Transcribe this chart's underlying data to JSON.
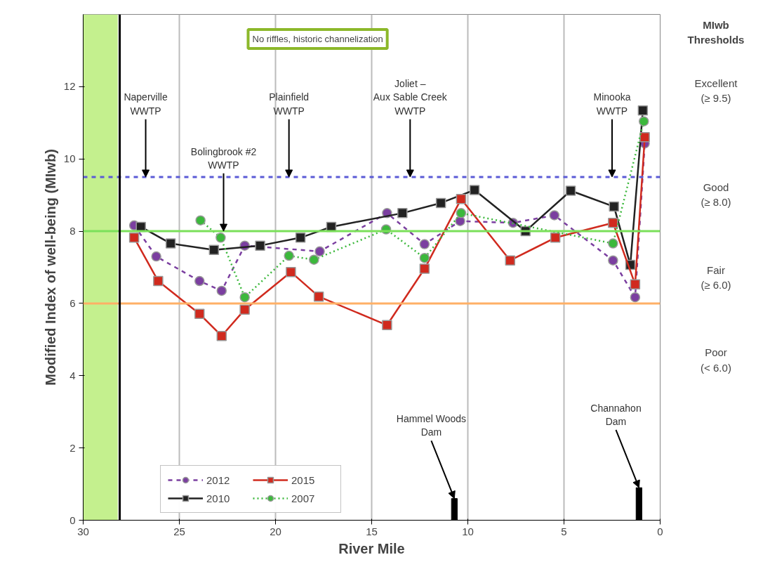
{
  "chart_data": {
    "type": "line",
    "xlabel": "River Mile",
    "ylabel": "Modified Index of well-being (MIwb)",
    "xlim": [
      30,
      0
    ],
    "ylim": [
      0,
      14
    ],
    "xticks": [
      30,
      25,
      20,
      15,
      10,
      5,
      0
    ],
    "yticks": [
      0,
      2,
      4,
      6,
      8,
      10,
      12
    ],
    "grid": "x",
    "legend": "bottom",
    "series": [
      {
        "name": "2012",
        "color": "#7b3fa0",
        "marker": "circle",
        "line_style": "dashed",
        "x": [
          27.35,
          26.2,
          23.95,
          22.8,
          21.6,
          17.7,
          14.2,
          12.25,
          10.4,
          7.65,
          5.5,
          2.45,
          1.3,
          0.8
        ],
        "values": [
          8.16,
          7.3,
          6.62,
          6.35,
          7.6,
          7.44,
          8.5,
          7.64,
          8.28,
          8.23,
          8.44,
          7.19,
          6.17,
          10.43
        ]
      },
      {
        "name": "2010",
        "color": "#222222",
        "marker": "square",
        "line_style": "solid",
        "x": [
          27.0,
          25.45,
          23.2,
          20.8,
          18.7,
          17.1,
          13.4,
          11.4,
          9.65,
          7.0,
          4.65,
          2.4,
          1.55,
          0.9
        ],
        "values": [
          8.12,
          7.66,
          7.48,
          7.6,
          7.82,
          8.12,
          8.5,
          8.78,
          9.14,
          8.0,
          9.12,
          8.68,
          7.07,
          11.34
        ]
      },
      {
        "name": "2015",
        "color": "#d02a1e",
        "marker": "square",
        "line_style": "solid",
        "x": [
          27.35,
          26.1,
          23.95,
          22.8,
          21.6,
          19.2,
          17.75,
          14.2,
          12.25,
          10.35,
          7.8,
          5.45,
          2.45,
          1.3,
          0.8
        ],
        "values": [
          7.82,
          6.62,
          5.71,
          5.1,
          5.83,
          6.87,
          6.19,
          5.4,
          6.96,
          8.89,
          7.19,
          7.82,
          8.23,
          6.53,
          10.6
        ]
      },
      {
        "name": "2007",
        "color": "#3cb83c",
        "marker": "circle",
        "line_style": "dotted",
        "x": [
          23.9,
          22.85,
          21.6,
          19.3,
          18.0,
          14.25,
          12.25,
          10.35,
          2.45,
          0.85
        ],
        "values": [
          8.3,
          7.82,
          6.17,
          7.32,
          7.21,
          8.05,
          7.26,
          8.5,
          7.66,
          11.04
        ]
      },
      {
        "type": "bar",
        "color": "#000000",
        "x": [
          10.7,
          1.1
        ],
        "values": [
          0.6,
          0.9
        ]
      }
    ],
    "ref_lines": [
      {
        "axis": "y",
        "value": 9.5,
        "color": "#5b5bd6",
        "line_style": "dashed"
      },
      {
        "axis": "y",
        "value": 8.0,
        "color": "#7be05a",
        "line_style": "solid"
      },
      {
        "axis": "y",
        "value": 6.0,
        "color": "#ffb066",
        "line_style": "solid"
      },
      {
        "axis": "x",
        "value": 28.1,
        "color": "#000000",
        "line_style": "solid"
      }
    ],
    "bands": [
      {
        "axis": "x",
        "from": 30,
        "to": 28.2,
        "color": "#c4f08e"
      }
    ],
    "annotations": [
      {
        "text": "Naperville\nWWTP",
        "x": 26.75,
        "y": 9.5
      },
      {
        "text": "Bolingbrook #2\nWWTP",
        "x": 22.7,
        "y": 8.0
      },
      {
        "text": "Plainfield\nWWTP",
        "x": 19.3,
        "y": 9.5
      },
      {
        "text": "Joliet –\nAux Sable Creek\nWWTP",
        "x": 13.0,
        "y": 9.5
      },
      {
        "text": "Minooka\nWWTP",
        "x": 2.5,
        "y": 9.5
      },
      {
        "text": "Hammel Woods\nDam",
        "x": 10.7,
        "y": 0.6
      },
      {
        "text": "Channahon\nDam",
        "x": 1.1,
        "y": 0.9
      },
      "No riffles, historic channelization",
      "MIwb\nThresholds",
      "Excellent\n(≥ 9.5)",
      "Good\n(≥ 8.0)",
      "Fair\n(≥ 6.0)",
      "Poor\n(< 6.0)"
    ]
  }
}
